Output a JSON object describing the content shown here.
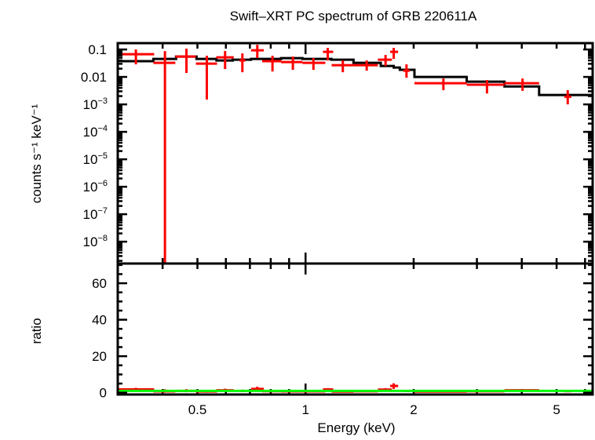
{
  "chart_data": [
    {
      "type": "scatter",
      "panel": "spectrum",
      "title": "Swift–XRT PC spectrum of GRB 220611A",
      "ylabel": "counts s⁻¹ keV⁻¹",
      "xscale": "log",
      "yscale": "log",
      "xlim": [
        0.3,
        6.3
      ],
      "ylim": [
        1.6e-09,
        0.17
      ],
      "ytick_labels": [
        {
          "value": 0.1,
          "base": "0.1",
          "exp": ""
        },
        {
          "value": 0.01,
          "base": "0.01",
          "exp": ""
        },
        {
          "value": 0.001,
          "base": "10",
          "exp": "−3"
        },
        {
          "value": 0.0001,
          "base": "10",
          "exp": "−4"
        },
        {
          "value": 1e-05,
          "base": "10",
          "exp": "−5"
        },
        {
          "value": 1e-06,
          "base": "10",
          "exp": "−6"
        },
        {
          "value": 1e-07,
          "base": "10",
          "exp": "−7"
        },
        {
          "value": 1e-08,
          "base": "10",
          "exp": "−8"
        }
      ],
      "data_color": "#ff0000",
      "model_color": "#000000",
      "data": [
        {
          "x": 0.337,
          "xlo": 0.3,
          "xhi": 0.379,
          "y": 0.0674,
          "ylo": 0.0287,
          "yhi": 0.1
        },
        {
          "x": 0.406,
          "xlo": 0.377,
          "xhi": 0.434,
          "y": 0.0327,
          "ylo": 1e-09,
          "yhi": 0.0877
        },
        {
          "x": 0.466,
          "xlo": 0.434,
          "xhi": 0.495,
          "y": 0.0553,
          "ylo": 0.0139,
          "yhi": 0.107
        },
        {
          "x": 0.531,
          "xlo": 0.495,
          "xhi": 0.567,
          "y": 0.0306,
          "ylo": 0.0015,
          "yhi": 0.059
        },
        {
          "x": 0.597,
          "xlo": 0.564,
          "xhi": 0.631,
          "y": 0.0518,
          "ylo": 0.0193,
          "yhi": 0.0877
        },
        {
          "x": 0.667,
          "xlo": 0.655,
          "xhi": 0.68,
          "y": 0.0398,
          "ylo": 0.0148,
          "yhi": 0.072
        },
        {
          "x": 0.734,
          "xlo": 0.705,
          "xhi": 0.765,
          "y": 0.0936,
          "ylo": 0.0485,
          "yhi": 0.148
        },
        {
          "x": 0.809,
          "xlo": 0.757,
          "xhi": 0.855,
          "y": 0.0373,
          "ylo": 0.0158,
          "yhi": 0.059
        },
        {
          "x": 0.922,
          "xlo": 0.855,
          "xhi": 0.98,
          "y": 0.0349,
          "ylo": 0.0181,
          "yhi": 0.0553
        },
        {
          "x": 1.052,
          "xlo": 0.98,
          "xhi": 1.135,
          "y": 0.0327,
          "ylo": 0.0181,
          "yhi": 0.0485
        },
        {
          "x": 1.153,
          "xlo": 1.118,
          "xhi": 1.194,
          "y": 0.082,
          "ylo": 0.0398,
          "yhi": 0.114
        },
        {
          "x": 1.27,
          "xlo": 1.182,
          "xhi": 1.36,
          "y": 0.0268,
          "ylo": 0.0148,
          "yhi": 0.0398
        },
        {
          "x": 1.48,
          "xlo": 1.36,
          "xhi": 1.59,
          "y": 0.0268,
          "ylo": 0.0169,
          "yhi": 0.0398
        },
        {
          "x": 1.67,
          "xlo": 1.59,
          "xhi": 1.74,
          "y": 0.0425,
          "ylo": 0.0251,
          "yhi": 0.063
        },
        {
          "x": 1.76,
          "xlo": 1.72,
          "xhi": 1.81,
          "y": 0.082,
          "ylo": 0.0454,
          "yhi": 0.114
        },
        {
          "x": 1.91,
          "xlo": 1.87,
          "xhi": 1.95,
          "y": 0.0169,
          "ylo": 0.0094,
          "yhi": 0.0287
        },
        {
          "x": 2.42,
          "xlo": 2.01,
          "xhi": 2.81,
          "y": 0.0059,
          "ylo": 0.0033,
          "yhi": 0.0088
        },
        {
          "x": 3.2,
          "xlo": 2.81,
          "xhi": 3.58,
          "y": 0.0052,
          "ylo": 0.0025,
          "yhi": 0.0077
        },
        {
          "x": 4.02,
          "xlo": 3.58,
          "xhi": 4.47,
          "y": 0.0059,
          "ylo": 0.0031,
          "yhi": 0.0088
        },
        {
          "x": 5.37,
          "xlo": 5.25,
          "xhi": 5.5,
          "y": 0.0019,
          "ylo": 0.001,
          "yhi": 0.0033
        }
      ],
      "model_steps": [
        {
          "xlo": 0.3,
          "xhi": 0.377,
          "y": 0.0373
        },
        {
          "xlo": 0.377,
          "xhi": 0.436,
          "y": 0.0454
        },
        {
          "xlo": 0.436,
          "xhi": 0.497,
          "y": 0.0553
        },
        {
          "xlo": 0.497,
          "xhi": 0.565,
          "y": 0.0454
        },
        {
          "xlo": 0.565,
          "xhi": 0.627,
          "y": 0.0398
        },
        {
          "xlo": 0.627,
          "xhi": 0.705,
          "y": 0.0425
        },
        {
          "xlo": 0.705,
          "xhi": 0.855,
          "y": 0.0454
        },
        {
          "xlo": 0.855,
          "xhi": 0.98,
          "y": 0.0485
        },
        {
          "xlo": 0.98,
          "xhi": 1.18,
          "y": 0.0454
        },
        {
          "xlo": 1.18,
          "xhi": 1.36,
          "y": 0.0425
        },
        {
          "xlo": 1.36,
          "xhi": 1.62,
          "y": 0.0327
        },
        {
          "xlo": 1.62,
          "xhi": 1.76,
          "y": 0.0251
        },
        {
          "xlo": 1.76,
          "xhi": 1.83,
          "y": 0.022
        },
        {
          "xlo": 1.83,
          "xhi": 2.01,
          "y": 0.0181
        },
        {
          "xlo": 2.01,
          "xhi": 2.81,
          "y": 0.01
        },
        {
          "xlo": 2.81,
          "xhi": 3.58,
          "y": 0.0067
        },
        {
          "xlo": 3.58,
          "xhi": 4.47,
          "y": 0.0045
        },
        {
          "xlo": 4.47,
          "xhi": 6.3,
          "y": 0.0022
        }
      ]
    },
    {
      "type": "scatter",
      "panel": "ratio",
      "xlabel": "Energy (keV)",
      "ylabel": "ratio",
      "xscale": "log",
      "xlim": [
        0.3,
        6.3
      ],
      "ylim": [
        -1,
        70.8
      ],
      "xtick_labels": [
        {
          "value": 0.5,
          "label": "0.5"
        },
        {
          "value": 1,
          "label": "1"
        },
        {
          "value": 2,
          "label": "2"
        },
        {
          "value": 5,
          "label": "5"
        }
      ],
      "ytick_labels": [
        {
          "value": 0,
          "label": "0"
        },
        {
          "value": 20,
          "label": "20"
        },
        {
          "value": 40,
          "label": "40"
        },
        {
          "value": 60,
          "label": "60"
        }
      ],
      "reference_line": 1,
      "reference_color": "#00ff00",
      "data_color": "#ff0000",
      "ratio": [
        1.8,
        0.7,
        1.0,
        0.67,
        1.3,
        0.94,
        2.06,
        0.82,
        0.72,
        0.72,
        1.8,
        0.63,
        0.8,
        1.7,
        3.7,
        0.93,
        0.59,
        0.78,
        1.3,
        0.86
      ]
    }
  ]
}
